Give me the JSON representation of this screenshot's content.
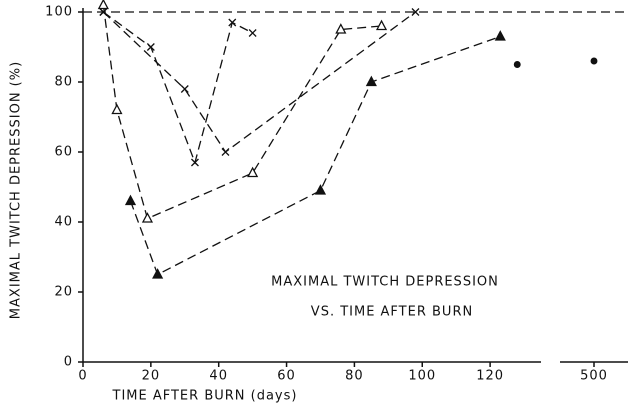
{
  "chart_data": {
    "type": "line",
    "title": [
      "MAXIMAL TWITCH DEPRESSION",
      "VS. TIME AFTER BURN"
    ],
    "xlabel": "TIME AFTER BURN (days)",
    "ylabel": "MAXIMAL TWITCH DEPRESSION (%)",
    "xlim": [
      0,
      135
    ],
    "xticks": [
      0,
      20,
      40,
      60,
      80,
      100,
      120
    ],
    "x2lim": [
      480,
      520
    ],
    "x2ticks": [
      500
    ],
    "ylim": [
      0,
      100
    ],
    "yticks": [
      0,
      20,
      40,
      60,
      80,
      100
    ],
    "hline": 100,
    "color": "#111111",
    "series": [
      {
        "marker": "x",
        "linestyle": "dashed",
        "x": [
          6,
          20,
          33,
          44,
          50
        ],
        "values": [
          100,
          90,
          57,
          97,
          94
        ]
      },
      {
        "marker": "x",
        "linestyle": "dashed",
        "x": [
          6,
          30,
          42,
          98
        ],
        "values": [
          100,
          78,
          60,
          100
        ]
      },
      {
        "marker": "triangle-open",
        "linestyle": "dashed",
        "x": [
          6,
          10,
          19,
          50,
          76,
          88
        ],
        "values": [
          102,
          72,
          41,
          54,
          95,
          96
        ]
      },
      {
        "marker": "triangle",
        "linestyle": "dashed",
        "x": [
          14,
          22,
          70,
          85,
          123
        ],
        "values": [
          46,
          25,
          49,
          80,
          93
        ]
      },
      {
        "marker": "dot",
        "linestyle": "none",
        "x": [
          128,
          500
        ],
        "values": [
          85,
          86
        ]
      }
    ]
  }
}
